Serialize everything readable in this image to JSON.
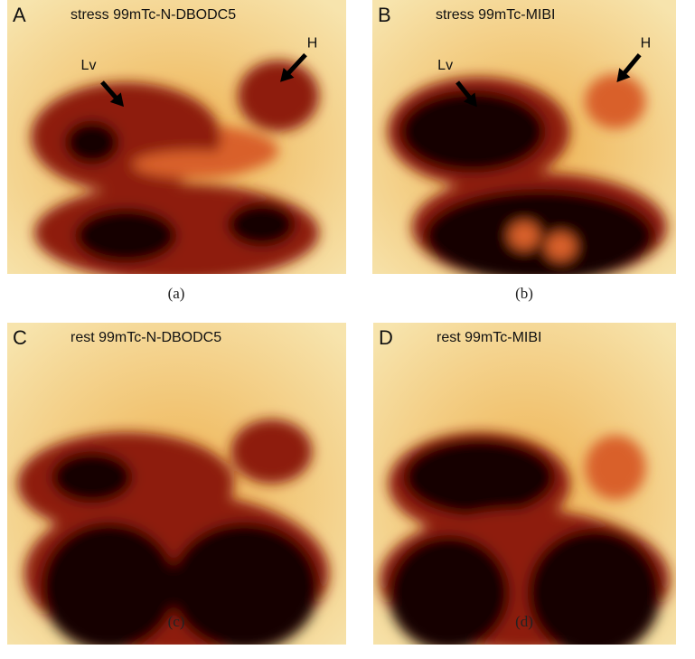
{
  "panels": [
    {
      "letter": "A",
      "title": "stress 99mTc-N-DBODC5",
      "caption": "(a)",
      "labels": [
        "Lv",
        "H"
      ]
    },
    {
      "letter": "B",
      "title": "stress 99mTc-MIBI",
      "caption": "(b)",
      "labels": [
        "Lv",
        "H"
      ]
    },
    {
      "letter": "C",
      "title": "rest 99mTc-N-DBODC5",
      "caption": "(c)"
    },
    {
      "letter": "D",
      "title": "rest 99mTc-MIBI",
      "caption": "(d)"
    }
  ]
}
